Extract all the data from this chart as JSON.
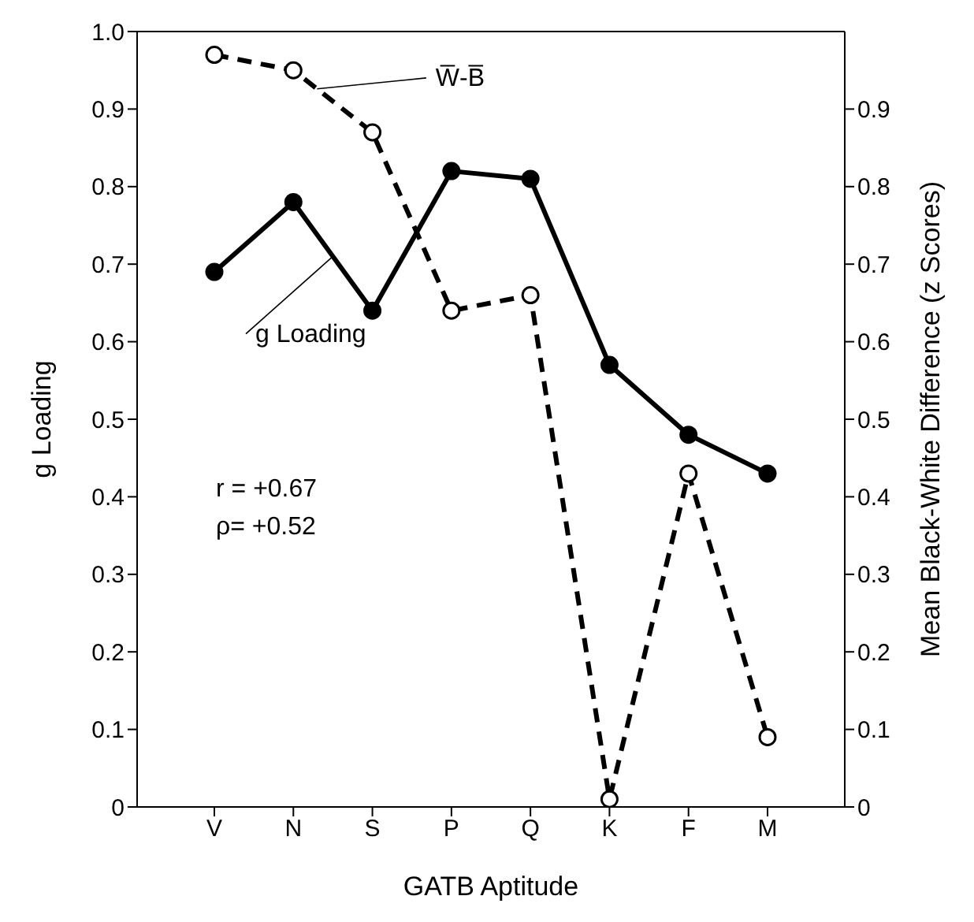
{
  "chart_data": {
    "type": "line",
    "xlabel": "GATB Aptitude",
    "ylabel": "g Loading",
    "y2label": "Mean Black-White Difference (z Scores)",
    "categories": [
      "V",
      "N",
      "S",
      "P",
      "Q",
      "K",
      "F",
      "M"
    ],
    "series": [
      {
        "name": "g Loading",
        "color": "#000000",
        "values": [
          0.69,
          0.78,
          0.64,
          0.82,
          0.81,
          0.57,
          0.48,
          0.43
        ],
        "line_style": "solid"
      },
      {
        "name": "W$^{̅}$-B$^{̅}$",
        "color": "#000000",
        "values": [
          0.97,
          0.95,
          0.87,
          0.64,
          0.66,
          0.01,
          0.43,
          0.09
        ],
        "axis": "y2",
        "line_style": "dashed"
      }
    ],
    "ylim": [
      0,
      1
    ],
    "yticks": [
      0,
      0.1,
      0.2,
      0.3,
      0.4,
      0.5,
      0.6,
      0.7,
      0.8,
      0.9,
      {
        "value": 1,
        "label": "1.0"
      }
    ],
    "y2lim": [
      0,
      1
    ],
    "y2ticks": [
      0,
      0.1,
      0.2,
      0.3,
      0.4,
      0.5,
      0.6,
      0.7,
      0.8,
      0.9
    ],
    "marker": "circle",
    "annotations": [
      "r = +0.67",
      "ρ= +0.52"
    ]
  }
}
